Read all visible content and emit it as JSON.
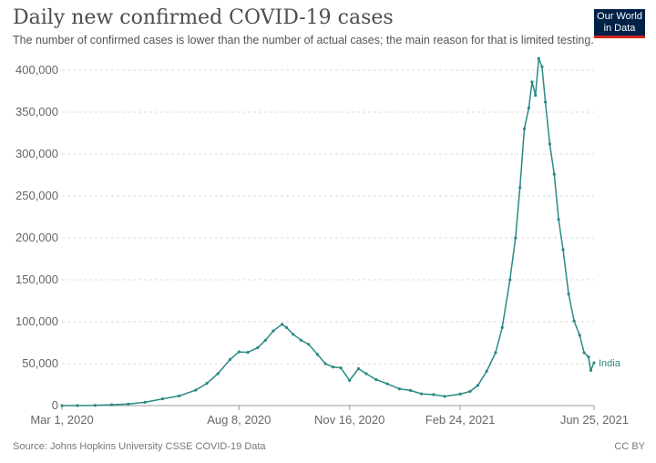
{
  "header": {
    "title": "Daily new confirmed COVID-19 cases",
    "subtitle": "The number of confirmed cases is lower than the number of actual cases; the main reason for that is limited testing.",
    "logo_line1": "Our World",
    "logo_line2": "in Data"
  },
  "footer": {
    "source": "Source: Johns Hopkins University CSSE COVID-19 Data",
    "license": "CC BY"
  },
  "colors": {
    "series": "#2a8a85",
    "grid": "#dddddd",
    "axis": "#999999",
    "logo_bg": "#002147",
    "logo_accent": "#ce261e"
  },
  "chart_data": {
    "type": "line",
    "x_start": "2020-03-01",
    "x_end": "2021-06-25",
    "ylim": [
      0,
      400000
    ],
    "grid": true,
    "y_ticks": [
      {
        "value": 0,
        "label": "0"
      },
      {
        "value": 50000,
        "label": "50,000"
      },
      {
        "value": 100000,
        "label": "100,000"
      },
      {
        "value": 150000,
        "label": "150,000"
      },
      {
        "value": 200000,
        "label": "200,000"
      },
      {
        "value": 250000,
        "label": "250,000"
      },
      {
        "value": 300000,
        "label": "300,000"
      },
      {
        "value": 350000,
        "label": "350,000"
      },
      {
        "value": 400000,
        "label": "400,000"
      }
    ],
    "x_ticks": [
      {
        "date": "2020-03-01",
        "label": "Mar 1, 2020"
      },
      {
        "date": "2020-08-08",
        "label": "Aug 8, 2020"
      },
      {
        "date": "2020-11-16",
        "label": "Nov 16, 2020"
      },
      {
        "date": "2021-02-24",
        "label": "Feb 24, 2021"
      },
      {
        "date": "2021-06-25",
        "label": "Jun 25, 2021"
      }
    ],
    "series": [
      {
        "name": "India",
        "points": [
          [
            "2020-03-01",
            0
          ],
          [
            "2020-03-15",
            20
          ],
          [
            "2020-03-31",
            300
          ],
          [
            "2020-04-15",
            1000
          ],
          [
            "2020-04-30",
            1800
          ],
          [
            "2020-05-15",
            3900
          ],
          [
            "2020-05-31",
            8000
          ],
          [
            "2020-06-15",
            11500
          ],
          [
            "2020-06-30",
            18500
          ],
          [
            "2020-07-10",
            26500
          ],
          [
            "2020-07-20",
            38000
          ],
          [
            "2020-07-31",
            55000
          ],
          [
            "2020-08-08",
            64000
          ],
          [
            "2020-08-16",
            63500
          ],
          [
            "2020-08-25",
            69000
          ],
          [
            "2020-09-01",
            78000
          ],
          [
            "2020-09-08",
            89000
          ],
          [
            "2020-09-16",
            97000
          ],
          [
            "2020-09-20",
            93000
          ],
          [
            "2020-09-26",
            85000
          ],
          [
            "2020-10-03",
            78000
          ],
          [
            "2020-10-10",
            73000
          ],
          [
            "2020-10-18",
            61000
          ],
          [
            "2020-10-25",
            50000
          ],
          [
            "2020-11-01",
            46000
          ],
          [
            "2020-11-08",
            45000
          ],
          [
            "2020-11-16",
            30000
          ],
          [
            "2020-11-24",
            44000
          ],
          [
            "2020-12-01",
            38000
          ],
          [
            "2020-12-10",
            31000
          ],
          [
            "2020-12-20",
            26000
          ],
          [
            "2020-12-31",
            20000
          ],
          [
            "2021-01-10",
            18000
          ],
          [
            "2021-01-20",
            14000
          ],
          [
            "2021-01-31",
            13000
          ],
          [
            "2021-02-10",
            11000
          ],
          [
            "2021-02-24",
            13700
          ],
          [
            "2021-03-05",
            17000
          ],
          [
            "2021-03-12",
            24000
          ],
          [
            "2021-03-20",
            41000
          ],
          [
            "2021-03-28",
            63000
          ],
          [
            "2021-04-03",
            93000
          ],
          [
            "2021-04-10",
            150000
          ],
          [
            "2021-04-15",
            200000
          ],
          [
            "2021-04-19",
            260000
          ],
          [
            "2021-04-23",
            330000
          ],
          [
            "2021-04-27",
            355000
          ],
          [
            "2021-04-30",
            386000
          ],
          [
            "2021-05-03",
            370000
          ],
          [
            "2021-05-06",
            414000
          ],
          [
            "2021-05-09",
            404000
          ],
          [
            "2021-05-12",
            362000
          ],
          [
            "2021-05-16",
            312000
          ],
          [
            "2021-05-20",
            276000
          ],
          [
            "2021-05-24",
            222000
          ],
          [
            "2021-05-28",
            186000
          ],
          [
            "2021-06-02",
            133000
          ],
          [
            "2021-06-07",
            101000
          ],
          [
            "2021-06-12",
            84000
          ],
          [
            "2021-06-16",
            63000
          ],
          [
            "2021-06-20",
            58000
          ],
          [
            "2021-06-22",
            42000
          ],
          [
            "2021-06-25",
            51000
          ]
        ]
      }
    ]
  }
}
